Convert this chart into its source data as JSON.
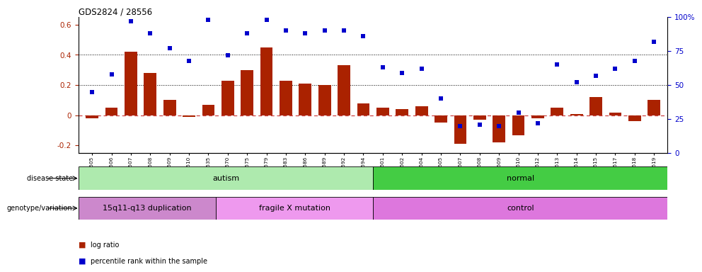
{
  "title": "GDS2824 / 28556",
  "samples": [
    "GSM176505",
    "GSM176506",
    "GSM176507",
    "GSM176508",
    "GSM176509",
    "GSM176510",
    "GSM176535",
    "GSM176570",
    "GSM176575",
    "GSM176579",
    "GSM176583",
    "GSM176586",
    "GSM176589",
    "GSM176592",
    "GSM176594",
    "GSM176601",
    "GSM176602",
    "GSM176604",
    "GSM176605",
    "GSM176607",
    "GSM176608",
    "GSM176609",
    "GSM176610",
    "GSM176612",
    "GSM176613",
    "GSM176614",
    "GSM176615",
    "GSM176617",
    "GSM176618",
    "GSM176619"
  ],
  "log_ratio": [
    -0.02,
    0.05,
    0.42,
    0.28,
    0.1,
    -0.01,
    0.07,
    0.23,
    0.3,
    0.45,
    0.23,
    0.21,
    0.2,
    0.33,
    0.08,
    0.05,
    0.04,
    0.06,
    -0.05,
    -0.19,
    -0.03,
    -0.18,
    -0.13,
    -0.02,
    0.05,
    0.01,
    0.12,
    0.02,
    -0.04,
    0.1
  ],
  "percentile": [
    45,
    58,
    97,
    88,
    77,
    68,
    98,
    72,
    88,
    98,
    90,
    88,
    90,
    90,
    86,
    63,
    59,
    62,
    40,
    20,
    21,
    20,
    30,
    22,
    65,
    52,
    57,
    62,
    68,
    82
  ],
  "disease_state_groups": [
    {
      "label": "autism",
      "start": 0,
      "end": 15,
      "color": "#aeeaae"
    },
    {
      "label": "normal",
      "start": 15,
      "end": 30,
      "color": "#44cc44"
    }
  ],
  "genotype_groups": [
    {
      "label": "15q11-q13 duplication",
      "start": 0,
      "end": 7,
      "color": "#cc88cc"
    },
    {
      "label": "fragile X mutation",
      "start": 7,
      "end": 15,
      "color": "#ee99ee"
    },
    {
      "label": "control",
      "start": 15,
      "end": 30,
      "color": "#dd77dd"
    }
  ],
  "bar_color": "#aa2200",
  "dot_color": "#0000cc",
  "zero_line_color": "#cc4444",
  "hline_color": "#000000",
  "hline_values": [
    0.2,
    0.4
  ],
  "ylim_left": [
    -0.25,
    0.65
  ],
  "ylim_right": [
    0,
    100
  ],
  "yticks_left": [
    -0.2,
    0.0,
    0.2,
    0.4,
    0.6
  ],
  "ytick_labels_right": [
    "0",
    "25",
    "50",
    "75",
    "100%"
  ],
  "yticks_right": [
    0,
    25,
    50,
    75,
    100
  ]
}
